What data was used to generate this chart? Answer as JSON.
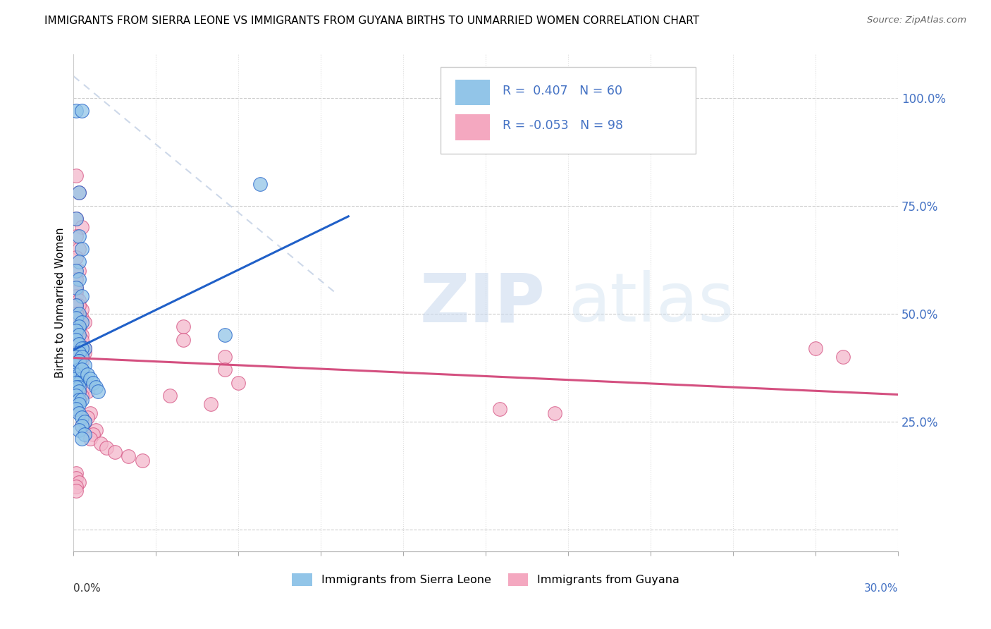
{
  "title": "IMMIGRANTS FROM SIERRA LEONE VS IMMIGRANTS FROM GUYANA BIRTHS TO UNMARRIED WOMEN CORRELATION CHART",
  "source": "Source: ZipAtlas.com",
  "ylabel": "Births to Unmarried Women",
  "right_yticklabels": [
    "",
    "25.0%",
    "50.0%",
    "75.0%",
    "100.0%"
  ],
  "right_ytick_positions": [
    0.0,
    0.25,
    0.5,
    0.75,
    1.0
  ],
  "xlim": [
    0.0,
    0.3
  ],
  "ylim": [
    -0.05,
    1.1
  ],
  "legend_color1": "#92C5E8",
  "legend_color2": "#F4A8C0",
  "series1_color": "#92C5E8",
  "series2_color": "#F4B8CC",
  "trendline1_color": "#2060C8",
  "trendline2_color": "#D45080",
  "diag_color": "#B8C8E0",
  "watermark_zip_color": "#C8D8EE",
  "watermark_atlas_color": "#C8D8EE",
  "sl_x": [
    0.001,
    0.003,
    0.002,
    0.001,
    0.002,
    0.003,
    0.002,
    0.001,
    0.002,
    0.001,
    0.003,
    0.001,
    0.002,
    0.001,
    0.003,
    0.002,
    0.001,
    0.002,
    0.001,
    0.002,
    0.004,
    0.003,
    0.002,
    0.001,
    0.003,
    0.002,
    0.001,
    0.002,
    0.003,
    0.001,
    0.002,
    0.001,
    0.003,
    0.002,
    0.001,
    0.002,
    0.001,
    0.002,
    0.001,
    0.002,
    0.003,
    0.002,
    0.001,
    0.002,
    0.003,
    0.004,
    0.003,
    0.002,
    0.004,
    0.003,
    0.002,
    0.004,
    0.003,
    0.005,
    0.006,
    0.007,
    0.008,
    0.009,
    0.068,
    0.055
  ],
  "sl_y": [
    0.97,
    0.97,
    0.78,
    0.72,
    0.68,
    0.65,
    0.62,
    0.6,
    0.58,
    0.56,
    0.54,
    0.52,
    0.5,
    0.49,
    0.48,
    0.47,
    0.46,
    0.45,
    0.44,
    0.43,
    0.42,
    0.42,
    0.41,
    0.4,
    0.4,
    0.39,
    0.38,
    0.37,
    0.37,
    0.36,
    0.36,
    0.35,
    0.35,
    0.34,
    0.34,
    0.33,
    0.33,
    0.32,
    0.31,
    0.3,
    0.3,
    0.29,
    0.28,
    0.27,
    0.26,
    0.25,
    0.24,
    0.23,
    0.22,
    0.21,
    0.39,
    0.38,
    0.37,
    0.36,
    0.35,
    0.34,
    0.33,
    0.32,
    0.8,
    0.45
  ],
  "gy_x": [
    0.001,
    0.002,
    0.001,
    0.003,
    0.001,
    0.002,
    0.001,
    0.002,
    0.001,
    0.001,
    0.001,
    0.001,
    0.002,
    0.001,
    0.003,
    0.001,
    0.002,
    0.003,
    0.004,
    0.001,
    0.002,
    0.003,
    0.001,
    0.002,
    0.003,
    0.004,
    0.001,
    0.002,
    0.003,
    0.001,
    0.002,
    0.001,
    0.002,
    0.001,
    0.001,
    0.002,
    0.004,
    0.005,
    0.003,
    0.002,
    0.001,
    0.001,
    0.006,
    0.005,
    0.004,
    0.003,
    0.008,
    0.007,
    0.006,
    0.01,
    0.012,
    0.015,
    0.02,
    0.025,
    0.002,
    0.001,
    0.001,
    0.001,
    0.001,
    0.001,
    0.001,
    0.001,
    0.003,
    0.002,
    0.004,
    0.002,
    0.003,
    0.001,
    0.002,
    0.001,
    0.001,
    0.002,
    0.001,
    0.001,
    0.002,
    0.001,
    0.002,
    0.001,
    0.001,
    0.001,
    0.001,
    0.002,
    0.001,
    0.001,
    0.001,
    0.001,
    0.001,
    0.04,
    0.04,
    0.055,
    0.055,
    0.06,
    0.175,
    0.155,
    0.27,
    0.28,
    0.05,
    0.035
  ],
  "gy_y": [
    0.82,
    0.78,
    0.72,
    0.7,
    0.68,
    0.65,
    0.63,
    0.6,
    0.58,
    0.56,
    0.55,
    0.54,
    0.53,
    0.52,
    0.51,
    0.5,
    0.49,
    0.49,
    0.48,
    0.47,
    0.46,
    0.45,
    0.44,
    0.43,
    0.42,
    0.41,
    0.4,
    0.4,
    0.39,
    0.38,
    0.37,
    0.37,
    0.36,
    0.35,
    0.35,
    0.34,
    0.33,
    0.32,
    0.31,
    0.3,
    0.29,
    0.28,
    0.27,
    0.26,
    0.25,
    0.24,
    0.23,
    0.22,
    0.21,
    0.2,
    0.19,
    0.18,
    0.17,
    0.16,
    0.52,
    0.5,
    0.5,
    0.49,
    0.48,
    0.47,
    0.46,
    0.45,
    0.44,
    0.43,
    0.42,
    0.41,
    0.4,
    0.39,
    0.38,
    0.37,
    0.36,
    0.35,
    0.34,
    0.33,
    0.32,
    0.31,
    0.3,
    0.29,
    0.28,
    0.13,
    0.12,
    0.11,
    0.1,
    0.09,
    0.52,
    0.5,
    0.49,
    0.47,
    0.44,
    0.4,
    0.37,
    0.34,
    0.27,
    0.28,
    0.42,
    0.4,
    0.29,
    0.31
  ]
}
